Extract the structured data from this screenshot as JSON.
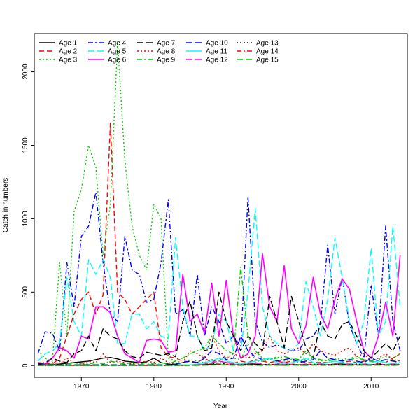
{
  "chart_data": {
    "type": "line",
    "xlabel": "Year",
    "ylabel": "Catch in numbers",
    "xlim": [
      1963.5,
      2015
    ],
    "ylim": [
      -80,
      2260
    ],
    "x_ticks": [
      1970,
      1980,
      1990,
      2000,
      2010
    ],
    "y_ticks": [
      0,
      500,
      1000,
      1500,
      2000
    ],
    "legend_position": "top-left",
    "grid": false,
    "x": [
      1964,
      1965,
      1966,
      1967,
      1968,
      1969,
      1970,
      1971,
      1972,
      1973,
      1974,
      1975,
      1976,
      1977,
      1978,
      1979,
      1980,
      1981,
      1982,
      1983,
      1984,
      1985,
      1986,
      1987,
      1988,
      1989,
      1990,
      1991,
      1992,
      1993,
      1994,
      1995,
      1996,
      1997,
      1998,
      1999,
      2000,
      2001,
      2002,
      2003,
      2004,
      2005,
      2006,
      2007,
      2008,
      2009,
      2010,
      2011,
      2012,
      2013,
      2014
    ],
    "series": [
      {
        "name": "Age 1",
        "color": "#000000",
        "dash": "solid",
        "values": [
          10,
          5,
          5,
          10,
          15,
          20,
          25,
          30,
          40,
          50,
          55,
          45,
          30,
          25,
          20,
          25,
          50,
          20,
          10,
          5,
          5,
          5,
          5,
          5,
          10,
          5,
          5,
          5,
          5,
          10,
          10,
          5,
          5,
          5,
          5,
          5,
          5,
          5,
          5,
          5,
          5,
          10,
          10,
          5,
          5,
          5,
          5,
          10,
          5,
          5,
          5
        ]
      },
      {
        "name": "Age 2",
        "color": "#ff0000",
        "dash": "dash",
        "values": [
          20,
          15,
          10,
          50,
          200,
          350,
          450,
          500,
          350,
          480,
          1650,
          500,
          450,
          350,
          400,
          450,
          500,
          120,
          60,
          50,
          30,
          25,
          20,
          50,
          20,
          50,
          20,
          15,
          30,
          20,
          40,
          30,
          20,
          30,
          20,
          30,
          30,
          20,
          20,
          20,
          20,
          30,
          20,
          30,
          20,
          30,
          30,
          10,
          20,
          50,
          80
        ]
      },
      {
        "name": "Age 3",
        "color": "#00cd00",
        "dash": "dot",
        "values": [
          100,
          50,
          30,
          700,
          200,
          1050,
          1200,
          1500,
          1350,
          750,
          1100,
          2200,
          1400,
          950,
          750,
          650,
          1100,
          1000,
          50,
          30,
          20,
          40,
          30,
          20,
          40,
          30,
          60,
          50,
          40,
          150,
          30,
          30,
          40,
          60,
          30,
          40,
          30,
          40,
          50,
          30,
          40,
          50,
          40,
          50,
          60,
          40,
          30,
          40,
          60,
          50,
          80
        ]
      },
      {
        "name": "Age 4",
        "color": "#0000ff",
        "dash": "dashdot",
        "values": [
          80,
          230,
          220,
          100,
          700,
          400,
          880,
          950,
          1180,
          700,
          350,
          300,
          880,
          650,
          620,
          430,
          450,
          700,
          1130,
          350,
          380,
          200,
          620,
          200,
          400,
          300,
          150,
          200,
          130,
          1150,
          300,
          160,
          120,
          140,
          120,
          100,
          100,
          180,
          200,
          280,
          820,
          350,
          600,
          280,
          150,
          50,
          550,
          200,
          950,
          300,
          100
        ]
      },
      {
        "name": "Age 5",
        "color": "#00ffff",
        "dash": "longdash",
        "values": [
          30,
          80,
          100,
          150,
          600,
          300,
          200,
          720,
          620,
          720,
          600,
          150,
          150,
          350,
          350,
          250,
          300,
          200,
          180,
          870,
          400,
          200,
          200,
          100,
          150,
          350,
          300,
          100,
          100,
          500,
          1070,
          400,
          200,
          150,
          120,
          100,
          150,
          570,
          400,
          200,
          450,
          870,
          600,
          300,
          150,
          300,
          800,
          200,
          300,
          950,
          400
        ]
      },
      {
        "name": "Age 6",
        "color": "#ff00ff",
        "dash": "solid",
        "values": [
          20,
          10,
          50,
          120,
          100,
          50,
          200,
          180,
          400,
          400,
          360,
          200,
          80,
          50,
          20,
          170,
          180,
          170,
          90,
          100,
          620,
          300,
          350,
          220,
          560,
          200,
          580,
          200,
          50,
          80,
          200,
          760,
          400,
          300,
          680,
          250,
          150,
          270,
          600,
          350,
          250,
          450,
          590,
          520,
          300,
          100,
          50,
          200,
          430,
          200,
          750
        ]
      },
      {
        "name": "Age 7",
        "color": "#000000",
        "dash": "longdash",
        "values": [
          10,
          20,
          50,
          30,
          20,
          80,
          100,
          200,
          100,
          250,
          200,
          180,
          100,
          60,
          50,
          90,
          80,
          70,
          80,
          60,
          300,
          440,
          200,
          100,
          120,
          500,
          300,
          200,
          100,
          200,
          150,
          100,
          470,
          300,
          120,
          470,
          300,
          120,
          50,
          300,
          200,
          180,
          280,
          300,
          200,
          100,
          50,
          100,
          150,
          100,
          200
        ]
      },
      {
        "name": "Age 8",
        "color": "#ff0000",
        "dash": "dot",
        "values": [
          5,
          10,
          20,
          10,
          50,
          20,
          10,
          30,
          20,
          80,
          20,
          30,
          20,
          10,
          20,
          30,
          20,
          50,
          20,
          10,
          20,
          100,
          80,
          50,
          200,
          100,
          50,
          80,
          60,
          50,
          80,
          100,
          200,
          100,
          80,
          100,
          120,
          80,
          150,
          100,
          80,
          70,
          100,
          120,
          60,
          80,
          30,
          50,
          80,
          40,
          30
        ]
      },
      {
        "name": "Age 9",
        "color": "#00cd00",
        "dash": "dashdot",
        "values": [
          5,
          5,
          10,
          5,
          10,
          20,
          10,
          10,
          20,
          10,
          30,
          20,
          10,
          20,
          10,
          20,
          10,
          20,
          10,
          30,
          50,
          80,
          100,
          120,
          200,
          150,
          100,
          80,
          670,
          200,
          100,
          50,
          40,
          50,
          60,
          50,
          40,
          100,
          50,
          40,
          30,
          40,
          30,
          40,
          50,
          40,
          30,
          20,
          40,
          30,
          40
        ]
      },
      {
        "name": "Age 10",
        "color": "#0000ff",
        "dash": "longdash",
        "values": [
          5,
          5,
          5,
          5,
          5,
          5,
          5,
          5,
          5,
          5,
          5,
          5,
          5,
          5,
          5,
          5,
          5,
          5,
          5,
          10,
          20,
          30,
          20,
          50,
          100,
          80,
          40,
          50,
          200,
          100,
          60,
          40,
          50,
          30,
          40,
          50,
          20,
          30,
          40,
          100,
          50,
          40,
          30,
          40,
          30,
          20,
          50,
          30,
          40,
          30,
          20
        ]
      },
      {
        "name": "Age 11",
        "color": "#00ffff",
        "dash": "solid",
        "values": [
          2,
          2,
          2,
          2,
          2,
          2,
          2,
          2,
          2,
          2,
          2,
          2,
          2,
          2,
          2,
          2,
          2,
          2,
          2,
          2,
          5,
          5,
          10,
          20,
          30,
          50,
          30,
          20,
          10,
          20,
          30,
          40,
          50,
          20,
          10,
          20,
          30,
          50,
          20,
          10,
          20,
          30,
          20,
          10,
          20,
          10,
          20,
          30,
          20,
          10,
          20
        ]
      },
      {
        "name": "Age 12",
        "color": "#ff00ff",
        "dash": "longdash",
        "values": [
          1,
          1,
          1,
          1,
          1,
          1,
          1,
          1,
          1,
          1,
          1,
          1,
          1,
          1,
          1,
          1,
          1,
          1,
          1,
          1,
          2,
          2,
          5,
          10,
          20,
          30,
          20,
          10,
          5,
          10,
          20,
          10,
          5,
          10,
          20,
          10,
          5,
          10,
          5,
          10,
          5,
          10,
          5,
          10,
          5,
          10,
          5,
          10,
          5,
          10,
          5
        ]
      },
      {
        "name": "Age 13",
        "color": "#000000",
        "dash": "dot",
        "values": [
          1,
          1,
          1,
          1,
          1,
          1,
          1,
          1,
          1,
          1,
          1,
          1,
          1,
          1,
          1,
          1,
          1,
          1,
          1,
          1,
          1,
          2,
          3,
          5,
          10,
          20,
          10,
          5,
          5,
          10,
          5,
          5,
          10,
          5,
          5,
          10,
          5,
          5,
          10,
          5,
          5,
          10,
          5,
          5,
          10,
          5,
          5,
          10,
          5,
          5,
          10
        ]
      },
      {
        "name": "Age 14",
        "color": "#ff0000",
        "dash": "dashdot",
        "values": [
          1,
          1,
          1,
          1,
          1,
          1,
          1,
          1,
          1,
          1,
          1,
          1,
          1,
          1,
          1,
          1,
          1,
          1,
          1,
          1,
          1,
          1,
          2,
          3,
          5,
          10,
          5,
          3,
          2,
          5,
          3,
          2,
          5,
          3,
          2,
          5,
          3,
          2,
          5,
          3,
          2,
          5,
          3,
          2,
          5,
          3,
          2,
          5,
          3,
          2,
          5
        ]
      },
      {
        "name": "Age 15",
        "color": "#00cd00",
        "dash": "longdash",
        "values": [
          1,
          1,
          1,
          1,
          1,
          1,
          1,
          1,
          1,
          1,
          1,
          1,
          1,
          1,
          1,
          1,
          1,
          1,
          1,
          1,
          1,
          1,
          1,
          2,
          3,
          5,
          3,
          2,
          1,
          3,
          2,
          1,
          3,
          2,
          1,
          3,
          2,
          1,
          3,
          2,
          1,
          3,
          2,
          1,
          3,
          2,
          1,
          3,
          2,
          1,
          3
        ]
      }
    ]
  }
}
